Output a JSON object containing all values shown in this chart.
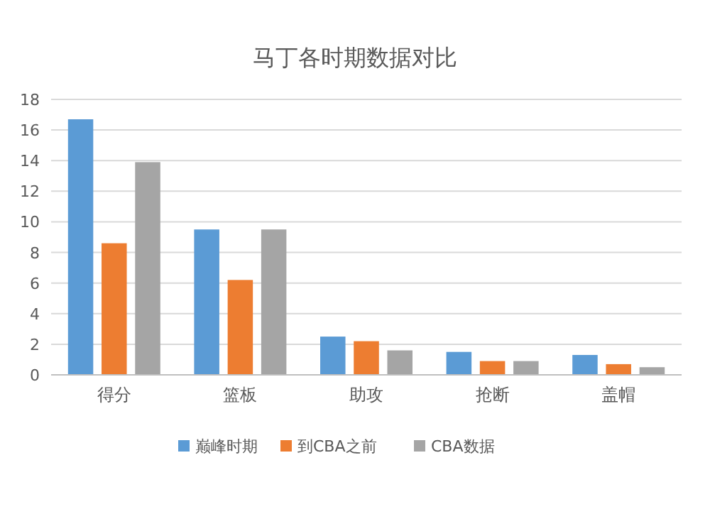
{
  "chart_data": {
    "type": "bar",
    "title": "马丁各时期数据对比",
    "categories": [
      "得分",
      "篮板",
      "助攻",
      "抢断",
      "盖帽"
    ],
    "series": [
      {
        "name": "巅峰时期",
        "color": "#5b9bd5",
        "values": [
          16.7,
          9.5,
          2.5,
          1.5,
          1.3
        ]
      },
      {
        "name": "到CBA之前",
        "color": "#ed7d31",
        "values": [
          8.6,
          6.2,
          2.2,
          0.9,
          0.7
        ]
      },
      {
        "name": "CBA数据",
        "color": "#a5a5a5",
        "values": [
          13.9,
          9.5,
          1.6,
          0.9,
          0.5
        ]
      }
    ],
    "ylim": [
      0,
      18
    ],
    "yticks": [
      0,
      2,
      4,
      6,
      8,
      10,
      12,
      14,
      16,
      18
    ],
    "grid": "y",
    "legend": "bottom"
  }
}
